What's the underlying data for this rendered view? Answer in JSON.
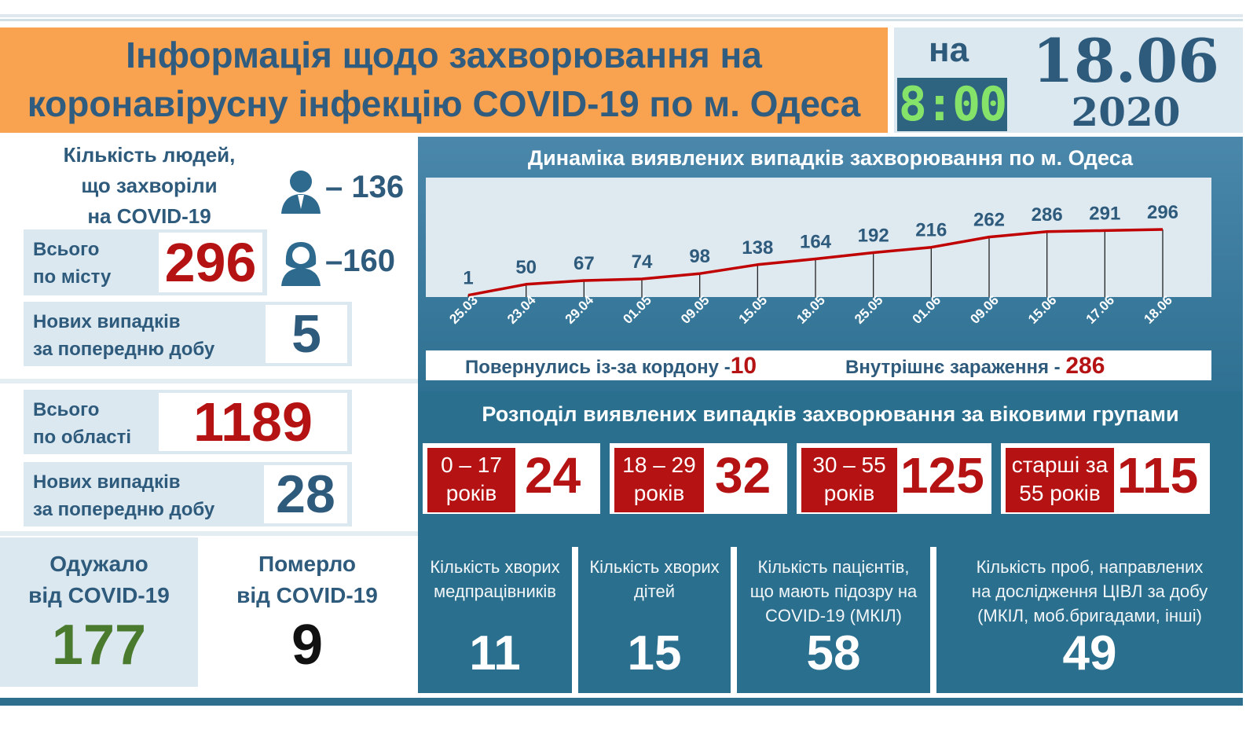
{
  "header": {
    "title_line1": "Інформація щодо захворювання на",
    "title_line2": "коронавірусну інфекцію COVID-19 по м. Одеса",
    "na": "на",
    "time": "8:00",
    "date": "18.06",
    "year": "2020"
  },
  "city": {
    "people_label": [
      "Кількість людей,",
      "що захворіли",
      "на COVID-19"
    ],
    "men": "– 136",
    "women": "–160",
    "total_label": [
      "Всього",
      "по місту"
    ],
    "total": "296",
    "new_label": [
      "Нових випадків",
      "за попередню добу"
    ],
    "new": "5"
  },
  "region": {
    "total_label": [
      "Всього",
      "по області"
    ],
    "total": "1189",
    "new_label": [
      "Нових випадків",
      "за попередню добу"
    ],
    "new": "28"
  },
  "recovered": {
    "label": [
      "Одужало",
      "від COVID-19"
    ],
    "value": "177"
  },
  "died": {
    "label": [
      "Померло",
      "від COVID-19"
    ],
    "value": "9"
  },
  "chart_data": {
    "type": "line",
    "title": "Динаміка виявлених випадків захворювання по м. Одеса",
    "categories": [
      "25.03",
      "23.04",
      "29.04",
      "01.05",
      "09.05",
      "15.05",
      "18.05",
      "25.05",
      "01.06",
      "09.06",
      "15.06",
      "17.06",
      "18.06"
    ],
    "values": [
      1,
      50,
      67,
      74,
      98,
      138,
      164,
      192,
      216,
      262,
      286,
      291,
      296
    ],
    "ylim": [
      0,
      296
    ],
    "grid": false,
    "color": "#c00000"
  },
  "origin": {
    "returned_label": "Повернулись із-за кордону -",
    "returned": "10",
    "internal_label": "Внутрішнє зараження -",
    "internal": "286"
  },
  "ages": {
    "title": "Розподіл виявлених випадків захворювання за віковими групами",
    "groups": [
      {
        "l1": "0 – 17",
        "l2": "років",
        "value": "24"
      },
      {
        "l1": "18 – 29",
        "l2": "років",
        "value": "32"
      },
      {
        "l1": "30 – 55",
        "l2": "років",
        "value": "125"
      },
      {
        "l1": "старші за",
        "l2": "55 років",
        "value": "115"
      }
    ]
  },
  "stats": [
    {
      "caption": [
        "Кількість хворих",
        "медпрацівників"
      ],
      "value": "11"
    },
    {
      "caption": [
        "Кількість хворих",
        "дітей"
      ],
      "value": "15"
    },
    {
      "caption": [
        "Кількість пацієнтів,",
        "що мають підозру на",
        "COVID-19 (МКІЛ)"
      ],
      "value": "58"
    },
    {
      "caption": [
        "Кількість проб, направлених",
        "на дослідження ЦІВЛ за добу",
        "(МКІЛ, моб.бригадами, інші)"
      ],
      "value": "49"
    }
  ],
  "colors": {
    "accent_red": "#b51313",
    "navy": "#2e5a7c",
    "green": "#4a7a2e",
    "teal": "#2a6f8e",
    "orange": "#f9a24f"
  }
}
